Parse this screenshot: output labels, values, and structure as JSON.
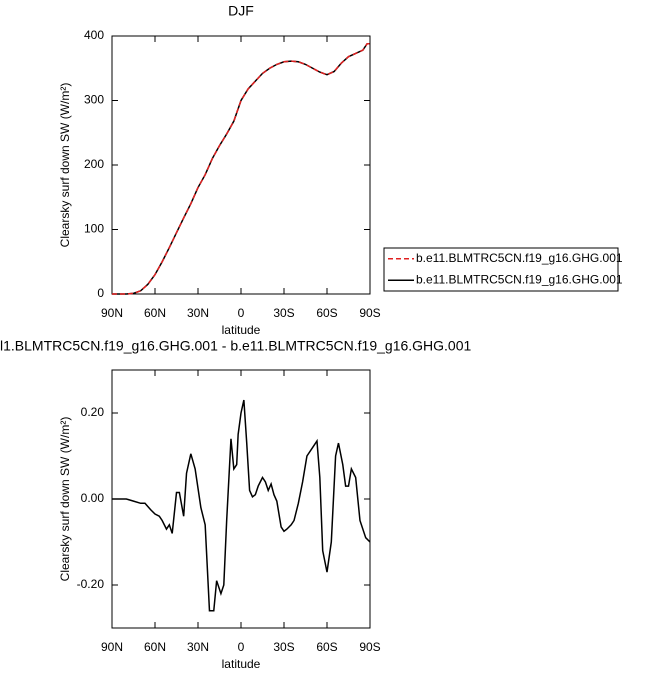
{
  "chart_data": [
    {
      "type": "line",
      "title": "DJF",
      "xlabel": "latitude",
      "ylabel": "Clearsky surf down SW (W/m²)",
      "x": [
        90,
        85,
        80,
        75,
        70,
        65,
        60,
        55,
        50,
        45,
        40,
        35,
        30,
        25,
        20,
        15,
        10,
        5,
        0,
        -5,
        -10,
        -15,
        -20,
        -25,
        -30,
        -35,
        -40,
        -45,
        -50,
        -55,
        -60,
        -65,
        -70,
        -75,
        -80,
        -85,
        -88,
        -90
      ],
      "series": [
        {
          "name": "b.e11.BLMTRC5CN.f19_g16.GHG.001",
          "color": "#e02020",
          "dash": true,
          "values": [
            0,
            0,
            0,
            1,
            5,
            15,
            30,
            50,
            72,
            95,
            118,
            140,
            165,
            185,
            210,
            230,
            248,
            268,
            300,
            318,
            330,
            342,
            350,
            356,
            360,
            361,
            360,
            356,
            350,
            344,
            340,
            345,
            358,
            368,
            373,
            378,
            388,
            388
          ]
        },
        {
          "name": "b.e11.BLMTRC5CN.f19_g16.GHG.001",
          "color": "#000000",
          "dash": false,
          "values": [
            0,
            0,
            0,
            1,
            5,
            15,
            30,
            50,
            72,
            95,
            118,
            140,
            165,
            185,
            210,
            230,
            248,
            268,
            300,
            318,
            330,
            342,
            350,
            356,
            360,
            361,
            360,
            356,
            350,
            344,
            340,
            345,
            358,
            368,
            373,
            378,
            388,
            388
          ]
        }
      ],
      "xlim": [
        90,
        -90
      ],
      "xticks": [
        {
          "value": 90,
          "label": "90N"
        },
        {
          "value": 60,
          "label": "60N"
        },
        {
          "value": 30,
          "label": "30N"
        },
        0,
        {
          "value": -30,
          "label": "30S"
        },
        {
          "value": -60,
          "label": "60S"
        },
        {
          "value": -90,
          "label": "90S"
        }
      ],
      "ylim": [
        0,
        400
      ],
      "yticks": [
        0,
        100,
        200,
        300,
        400
      ],
      "legend": "right"
    },
    {
      "type": "line",
      "title": "l1.BLMTRC5CN.f19_g16.GHG.001 - b.e11.BLMTRC5CN.f19_g16.GHG.001",
      "xlabel": "latitude",
      "ylabel": "Clearsky surf down SW (W/m²)",
      "x": [
        90,
        80,
        75,
        70,
        67,
        63,
        60,
        57,
        55,
        52,
        50,
        48,
        45,
        43,
        40,
        38,
        35,
        32,
        28,
        25,
        22,
        19,
        17,
        14,
        12,
        10,
        7,
        5,
        3,
        2,
        0,
        -2,
        -4,
        -6,
        -8,
        -10,
        -12,
        -15,
        -17,
        -19,
        -21,
        -23,
        -25,
        -28,
        -30,
        -32,
        -35,
        -37,
        -40,
        -43,
        -46,
        -50,
        -53,
        -55,
        -57,
        -60,
        -63,
        -66,
        -68,
        -71,
        -73,
        -75,
        -77,
        -80,
        -83,
        -87,
        -90
      ],
      "values": [
        0,
        0,
        -0.005,
        -0.01,
        -0.01,
        -0.025,
        -0.035,
        -0.04,
        -0.05,
        -0.07,
        -0.06,
        -0.08,
        0.015,
        0.015,
        -0.04,
        0.06,
        0.105,
        0.07,
        -0.02,
        -0.06,
        -0.26,
        -0.26,
        -0.19,
        -0.22,
        -0.2,
        -0.05,
        0.14,
        0.07,
        0.08,
        0.15,
        0.2,
        0.23,
        0.13,
        0.02,
        0.005,
        0.01,
        0.03,
        0.05,
        0.04,
        0.02,
        0.035,
        0.01,
        -0.005,
        -0.065,
        -0.075,
        -0.07,
        -0.06,
        -0.05,
        -0.01,
        0.04,
        0.1,
        0.12,
        0.135,
        0.05,
        -0.12,
        -0.17,
        -0.1,
        0.1,
        0.13,
        0.08,
        0.03,
        0.03,
        0.07,
        0.05,
        -0.05,
        -0.09,
        -0.1
      ],
      "color": "#000000",
      "xlim": [
        90,
        -90
      ],
      "xticks": [
        {
          "value": 90,
          "label": "90N"
        },
        {
          "value": 60,
          "label": "60N"
        },
        {
          "value": 30,
          "label": "30N"
        },
        0,
        {
          "value": -30,
          "label": "30S"
        },
        {
          "value": -60,
          "label": "60S"
        },
        {
          "value": -90,
          "label": "90S"
        }
      ],
      "ylim": [
        -0.3,
        0.3
      ],
      "yticks": [
        {
          "value": -0.2,
          "label": "-0.20"
        },
        {
          "value": 0,
          "label": "0.00"
        },
        {
          "value": 0.2,
          "label": "0.20"
        }
      ]
    }
  ]
}
